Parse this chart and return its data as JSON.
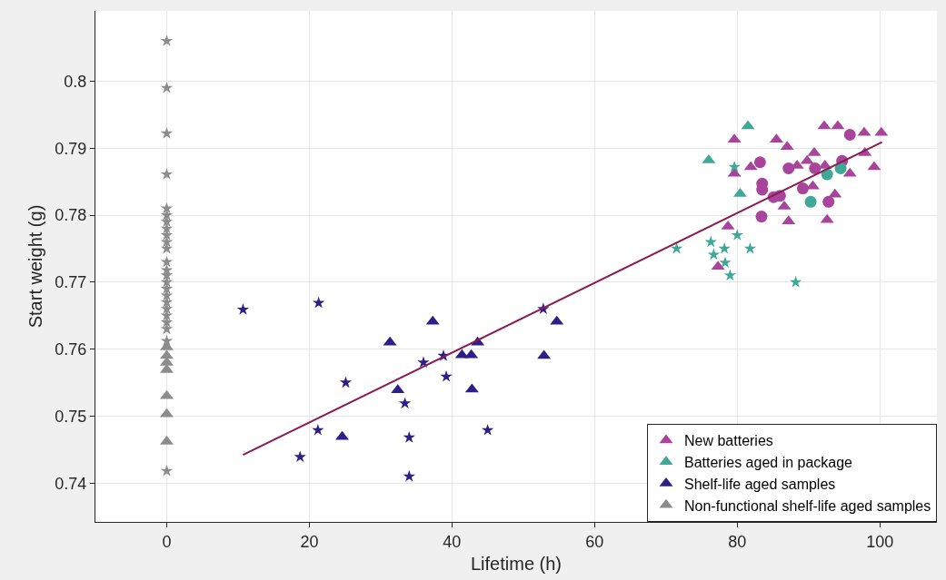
{
  "chart_data": {
    "type": "scatter",
    "xlabel": "Lifetime (h)",
    "ylabel": "Start weight (g)",
    "xlim": [
      -10,
      108
    ],
    "ylim": [
      0.7342,
      0.8105
    ],
    "xticks": [
      0,
      20,
      40,
      60,
      80,
      100
    ],
    "yticks": [
      0.74,
      0.75,
      0.76,
      0.77,
      0.78,
      0.79,
      0.8
    ],
    "grid": true,
    "legend": "bottom right",
    "series": [
      {
        "name": "New batteries",
        "color": "#a8449b",
        "marker": "triangle",
        "x": [
          79.6,
          92.2,
          94.1,
          97.8,
          100.2,
          85.5,
          87.0,
          90.8,
          81.9,
          88.4,
          89.8,
          92.3,
          97.9,
          99.2,
          79.6,
          95.8,
          90.6,
          93.7,
          86.6,
          87.2,
          92.6,
          78.7,
          77.3
        ],
        "values": [
          0.7913,
          0.7933,
          0.7933,
          0.7923,
          0.7923,
          0.7913,
          0.7902,
          0.7893,
          0.7872,
          0.7874,
          0.7881,
          0.7874,
          0.7893,
          0.7872,
          0.7862,
          0.7862,
          0.7843,
          0.7831,
          0.7813,
          0.7791,
          0.7793,
          0.7783,
          0.7723
        ]
      },
      {
        "color": "#a8449b",
        "marker": "circle",
        "x": [
          87.2,
          90.9,
          94.7,
          95.8,
          83.5,
          83.5,
          86.0,
          83.4,
          89.2,
          92.8,
          83.2,
          85.1
        ],
        "values": [
          0.787,
          0.787,
          0.7881,
          0.792,
          0.7847,
          0.7838,
          0.7829,
          0.7798,
          0.784,
          0.782,
          0.7879,
          0.7827
        ]
      },
      {
        "name": "Batteries aged in package",
        "color": "#3fa896",
        "marker": "triangle",
        "x": [
          81.5,
          76.0,
          80.4
        ],
        "values": [
          0.7933,
          0.7882,
          0.7832
        ]
      },
      {
        "color": "#3fa896",
        "marker": "circle",
        "x": [
          92.6,
          94.5,
          90.3
        ],
        "values": [
          0.7861,
          0.787,
          0.782
        ]
      },
      {
        "color": "#3fa896",
        "marker": "star",
        "x": [
          79.6,
          71.5,
          80.0,
          76.3,
          78.2,
          81.8,
          76.7,
          78.3,
          79.0,
          88.2
        ],
        "values": [
          0.7872,
          0.775,
          0.777,
          0.776,
          0.775,
          0.775,
          0.7741,
          0.7729,
          0.771,
          0.77
        ]
      },
      {
        "name": "Shelf-life aged samples",
        "color": "#2e1e8a",
        "marker": "triangle",
        "x": [
          37.3,
          31.3,
          32.4,
          24.6,
          41.4,
          42.7,
          43.6,
          42.8,
          52.9,
          54.7
        ],
        "values": [
          0.7641,
          0.761,
          0.7539,
          0.7469,
          0.7591,
          0.7591,
          0.761,
          0.754,
          0.759,
          0.7641
        ]
      },
      {
        "color": "#2e1e8a",
        "marker": "star",
        "x": [
          10.7,
          21.3,
          25.1,
          21.2,
          18.7,
          36.0,
          38.8,
          39.2,
          33.4,
          34.0,
          34.0,
          45.0,
          52.8
        ],
        "values": [
          0.7659,
          0.7669,
          0.755,
          0.7479,
          0.7439,
          0.758,
          0.759,
          0.7559,
          0.7519,
          0.7468,
          0.741,
          0.7479,
          0.766
        ]
      },
      {
        "name": "Non-functional shelf-life aged samples",
        "color": "#8c8c8c",
        "marker": "triangle",
        "x": [
          0,
          0,
          0,
          0,
          0,
          0,
          0
        ],
        "values": [
          0.7603,
          0.759,
          0.758,
          0.7569,
          0.753,
          0.7503,
          0.7462
        ]
      },
      {
        "color": "#8c8c8c",
        "marker": "star",
        "x": [
          0,
          0,
          0,
          0,
          0,
          0,
          0,
          0,
          0,
          0,
          0,
          0,
          0,
          0,
          0,
          0,
          0,
          0,
          0,
          0,
          0,
          0,
          0,
          0
        ],
        "values": [
          0.806,
          0.799,
          0.7922,
          0.7861,
          0.781,
          0.78,
          0.779,
          0.778,
          0.777,
          0.776,
          0.775,
          0.773,
          0.7718,
          0.771,
          0.77,
          0.769,
          0.768,
          0.767,
          0.766,
          0.765,
          0.764,
          0.763,
          0.7612,
          0.7418
        ]
      },
      {
        "type": "line",
        "color": "#8b1a4f",
        "marker": "none",
        "x": [
          10.7,
          100.3
        ],
        "values": [
          0.7442,
          0.7909
        ]
      }
    ]
  }
}
